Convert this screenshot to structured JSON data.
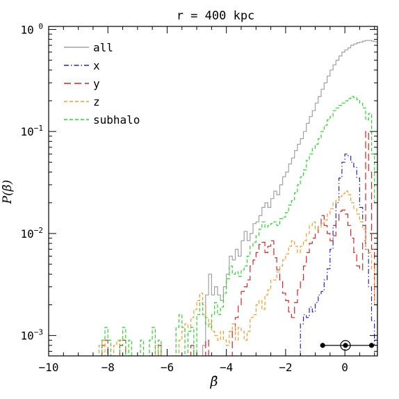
{
  "chart_data": {
    "type": "line",
    "title": "r = 400 kpc",
    "xlabel": "β̄",
    "ylabel": "P(β̄)",
    "xlim": [
      -10,
      1.1
    ],
    "ylim_log10": [
      -3.2,
      0.03
    ],
    "yscale": "log",
    "grid": false,
    "legend_position": "top-left",
    "x_ticks": [
      {
        "v": -10,
        "label": "−10"
      },
      {
        "v": -8,
        "label": "−8"
      },
      {
        "v": -6,
        "label": "−6"
      },
      {
        "v": -4,
        "label": "−4"
      },
      {
        "v": -2,
        "label": "−2"
      },
      {
        "v": 0,
        "label": "0"
      }
    ],
    "y_ticks": [
      {
        "base": "10",
        "exp": " 0",
        "log": 0
      },
      {
        "base": "10",
        "exp": "−1",
        "log": -1
      },
      {
        "base": "10",
        "exp": "−2",
        "log": -2
      },
      {
        "base": "10",
        "exp": "−3",
        "log": -3
      }
    ],
    "bin_start": -10.0,
    "bin_width": 0.1,
    "series": [
      {
        "name": "all",
        "color": "#a0a0a0",
        "dash": "",
        "width": 1.2,
        "points": [
          [
            -4.8,
            0.0008
          ],
          [
            -4.7,
            0.0025
          ],
          [
            -4.6,
            0.004
          ],
          [
            -4.5,
            0.0025
          ],
          [
            -4.4,
            0.003
          ],
          [
            -4.3,
            0.0025
          ],
          [
            -4.2,
            0.0022
          ],
          [
            -4.1,
            0.003
          ],
          [
            -4.0,
            0.004
          ],
          [
            -3.9,
            0.006
          ],
          [
            -3.8,
            0.0055
          ],
          [
            -3.7,
            0.007
          ],
          [
            -3.6,
            0.006
          ],
          [
            -3.5,
            0.0085
          ],
          [
            -3.4,
            0.0105
          ],
          [
            -3.3,
            0.0085
          ],
          [
            -3.2,
            0.01
          ],
          [
            -3.1,
            0.0125
          ],
          [
            -3.0,
            0.013
          ],
          [
            -2.9,
            0.015
          ],
          [
            -2.8,
            0.018
          ],
          [
            -2.7,
            0.02
          ],
          [
            -2.6,
            0.018
          ],
          [
            -2.5,
            0.022
          ],
          [
            -2.4,
            0.026
          ],
          [
            -2.3,
            0.024
          ],
          [
            -2.2,
            0.03
          ],
          [
            -2.1,
            0.036
          ],
          [
            -2.0,
            0.04
          ],
          [
            -1.9,
            0.048
          ],
          [
            -1.8,
            0.055
          ],
          [
            -1.7,
            0.065
          ],
          [
            -1.6,
            0.075
          ],
          [
            -1.5,
            0.085
          ],
          [
            -1.4,
            0.1
          ],
          [
            -1.3,
            0.12
          ],
          [
            -1.2,
            0.14
          ],
          [
            -1.1,
            0.16
          ],
          [
            -1.0,
            0.19
          ],
          [
            -0.9,
            0.22
          ],
          [
            -0.8,
            0.26
          ],
          [
            -0.7,
            0.3
          ],
          [
            -0.6,
            0.35
          ],
          [
            -0.5,
            0.4
          ],
          [
            -0.4,
            0.45
          ],
          [
            -0.3,
            0.5
          ],
          [
            -0.2,
            0.55
          ],
          [
            -0.1,
            0.6
          ],
          [
            0.0,
            0.63
          ],
          [
            0.1,
            0.66
          ],
          [
            0.2,
            0.7
          ],
          [
            0.3,
            0.72
          ],
          [
            0.4,
            0.74
          ],
          [
            0.5,
            0.75
          ],
          [
            0.6,
            0.77
          ],
          [
            0.7,
            0.78
          ],
          [
            0.8,
            0.78
          ],
          [
            0.9,
            0.77
          ],
          [
            1.0,
            0.76
          ]
        ]
      },
      {
        "name": "x",
        "color": "#2222cc",
        "dash": "7,3,1.5,3",
        "width": 1.2,
        "points": [
          [
            -1.5,
            0.0013
          ],
          [
            -1.4,
            0.0016
          ],
          [
            -1.3,
            0.0015
          ],
          [
            -1.2,
            0.0019
          ],
          [
            -1.1,
            0.0017
          ],
          [
            -1.0,
            0.0021
          ],
          [
            -0.9,
            0.0025
          ],
          [
            -0.8,
            0.0027
          ],
          [
            -0.7,
            0.0035
          ],
          [
            -0.6,
            0.0045
          ],
          [
            -0.5,
            0.007
          ],
          [
            -0.4,
            0.012
          ],
          [
            -0.3,
            0.02
          ],
          [
            -0.2,
            0.035
          ],
          [
            -0.1,
            0.05
          ],
          [
            0.0,
            0.06
          ],
          [
            0.1,
            0.058
          ],
          [
            0.2,
            0.05
          ],
          [
            0.3,
            0.045
          ],
          [
            0.4,
            0.035
          ],
          [
            0.5,
            0.018
          ],
          [
            0.6,
            0.012
          ],
          [
            0.7,
            0.007
          ],
          [
            0.8,
            0.003
          ],
          [
            0.9,
            0.0014
          ],
          [
            1.0,
            0.0008
          ]
        ]
      },
      {
        "name": "y",
        "color": "#dd2222",
        "dash": "10,5",
        "width": 1.2,
        "points": [
          [
            -8.2,
            0.0008
          ],
          [
            -8.1,
            0.0009
          ],
          [
            -7.6,
            0.0008
          ],
          [
            -7.5,
            0.0009
          ],
          [
            -6.3,
            0.0008
          ],
          [
            -5.2,
            0.0008
          ],
          [
            -4.7,
            0.0009
          ],
          [
            -3.8,
            0.0011
          ],
          [
            -3.7,
            0.0015
          ],
          [
            -3.6,
            0.002
          ],
          [
            -3.5,
            0.0027
          ],
          [
            -3.4,
            0.003
          ],
          [
            -3.3,
            0.0035
          ],
          [
            -3.2,
            0.0048
          ],
          [
            -3.1,
            0.0055
          ],
          [
            -3.0,
            0.0065
          ],
          [
            -2.9,
            0.0078
          ],
          [
            -2.8,
            0.0082
          ],
          [
            -2.7,
            0.0065
          ],
          [
            -2.6,
            0.0075
          ],
          [
            -2.5,
            0.0085
          ],
          [
            -2.4,
            0.0058
          ],
          [
            -2.3,
            0.0044
          ],
          [
            -2.2,
            0.0035
          ],
          [
            -2.1,
            0.0026
          ],
          [
            -2.0,
            0.0022
          ],
          [
            -1.9,
            0.0017
          ],
          [
            -1.8,
            0.0015
          ],
          [
            -1.7,
            0.0021
          ],
          [
            -1.6,
            0.0028
          ],
          [
            -1.5,
            0.0035
          ],
          [
            -1.4,
            0.0048
          ],
          [
            -1.3,
            0.0065
          ],
          [
            -1.2,
            0.008
          ],
          [
            -1.1,
            0.009
          ],
          [
            -1.0,
            0.01
          ],
          [
            -0.9,
            0.012
          ],
          [
            -0.8,
            0.015
          ],
          [
            -0.7,
            0.012
          ],
          [
            -0.6,
            0.01
          ],
          [
            -0.5,
            0.0085
          ],
          [
            -0.4,
            0.0095
          ],
          [
            -0.3,
            0.013
          ],
          [
            -0.2,
            0.0165
          ],
          [
            -0.1,
            0.017
          ],
          [
            0.0,
            0.0155
          ],
          [
            0.1,
            0.012
          ],
          [
            0.2,
            0.009
          ],
          [
            0.3,
            0.0065
          ],
          [
            0.4,
            0.0048
          ],
          [
            0.5,
            0.0044
          ],
          [
            0.6,
            0.0085
          ],
          [
            0.7,
            0.1
          ],
          [
            0.8,
            0.04
          ],
          [
            0.9,
            0.007
          ],
          [
            1.0,
            0.002
          ]
        ]
      },
      {
        "name": "z",
        "color": "#ff9922",
        "dash": "5,3",
        "width": 1.2,
        "points": [
          [
            -8.3,
            0.0008
          ],
          [
            -8.2,
            0.0009
          ],
          [
            -7.8,
            0.0008
          ],
          [
            -7.7,
            0.0009
          ],
          [
            -6.4,
            0.0008
          ],
          [
            -5.6,
            0.0009
          ],
          [
            -5.5,
            0.0011
          ],
          [
            -5.4,
            0.0013
          ],
          [
            -5.3,
            0.0012
          ],
          [
            -5.2,
            0.0015
          ],
          [
            -5.1,
            0.0018
          ],
          [
            -5.0,
            0.0022
          ],
          [
            -4.9,
            0.0026
          ],
          [
            -4.8,
            0.002
          ],
          [
            -4.7,
            0.0015
          ],
          [
            -4.6,
            0.0013
          ],
          [
            -4.5,
            0.0011
          ],
          [
            -4.4,
            0.001
          ],
          [
            -4.3,
            0.0009
          ],
          [
            -4.2,
            0.0011
          ],
          [
            -4.1,
            0.0009
          ],
          [
            -4.0,
            0.0008
          ],
          [
            -3.9,
            0.0011
          ],
          [
            -3.8,
            0.0013
          ],
          [
            -3.7,
            0.0009
          ],
          [
            -3.6,
            0.0012
          ],
          [
            -3.5,
            0.0011
          ],
          [
            -3.4,
            0.0009
          ],
          [
            -3.3,
            0.0011
          ],
          [
            -3.2,
            0.0015
          ],
          [
            -3.1,
            0.0016
          ],
          [
            -3.0,
            0.002
          ],
          [
            -2.9,
            0.0022
          ],
          [
            -2.8,
            0.0018
          ],
          [
            -2.7,
            0.0025
          ],
          [
            -2.6,
            0.0028
          ],
          [
            -2.5,
            0.0035
          ],
          [
            -2.4,
            0.0035
          ],
          [
            -2.3,
            0.0042
          ],
          [
            -2.2,
            0.0048
          ],
          [
            -2.1,
            0.0055
          ],
          [
            -2.0,
            0.0063
          ],
          [
            -1.9,
            0.0075
          ],
          [
            -1.8,
            0.0085
          ],
          [
            -1.7,
            0.0075
          ],
          [
            -1.6,
            0.0065
          ],
          [
            -1.5,
            0.0075
          ],
          [
            -1.4,
            0.0085
          ],
          [
            -1.3,
            0.01
          ],
          [
            -1.2,
            0.012
          ],
          [
            -1.1,
            0.013
          ],
          [
            -1.0,
            0.011
          ],
          [
            -0.9,
            0.0115
          ],
          [
            -0.8,
            0.0125
          ],
          [
            -0.7,
            0.0135
          ],
          [
            -0.6,
            0.0155
          ],
          [
            -0.5,
            0.0175
          ],
          [
            -0.4,
            0.02
          ],
          [
            -0.3,
            0.021
          ],
          [
            -0.2,
            0.023
          ],
          [
            -0.1,
            0.0245
          ],
          [
            0.0,
            0.026
          ],
          [
            0.1,
            0.024
          ],
          [
            0.2,
            0.02
          ],
          [
            0.3,
            0.0175
          ],
          [
            0.4,
            0.0155
          ],
          [
            0.5,
            0.013
          ],
          [
            0.6,
            0.011
          ],
          [
            0.7,
            0.007
          ],
          [
            0.8,
            0.0065
          ],
          [
            0.9,
            0.0045
          ],
          [
            1.0,
            0.002
          ]
        ]
      },
      {
        "name": "subhalo",
        "color": "#22dd22",
        "dash": "5,3",
        "width": 1.2,
        "points": [
          [
            -8.2,
            0.0009
          ],
          [
            -8.1,
            0.0012
          ],
          [
            -8.0,
            0.0009
          ],
          [
            -7.6,
            0.0009
          ],
          [
            -7.5,
            0.0012
          ],
          [
            -7.3,
            0.0009
          ],
          [
            -6.9,
            0.0009
          ],
          [
            -6.6,
            0.0009
          ],
          [
            -6.5,
            0.0012
          ],
          [
            -6.3,
            0.0009
          ],
          [
            -5.7,
            0.0012
          ],
          [
            -5.6,
            0.0016
          ],
          [
            -5.5,
            0.0012
          ],
          [
            -5.3,
            0.0011
          ],
          [
            -5.2,
            0.0012
          ],
          [
            -5.0,
            0.0016
          ],
          [
            -4.9,
            0.0021
          ],
          [
            -4.8,
            0.0016
          ],
          [
            -4.7,
            0.0013
          ],
          [
            -4.6,
            0.0012
          ],
          [
            -4.5,
            0.0016
          ],
          [
            -4.4,
            0.0021
          ],
          [
            -4.3,
            0.0016
          ],
          [
            -4.2,
            0.0019
          ],
          [
            -4.1,
            0.0026
          ],
          [
            -4.0,
            0.0036
          ],
          [
            -3.9,
            0.0048
          ],
          [
            -3.8,
            0.004
          ],
          [
            -3.7,
            0.0042
          ],
          [
            -3.6,
            0.0038
          ],
          [
            -3.5,
            0.0044
          ],
          [
            -3.4,
            0.0048
          ],
          [
            -3.3,
            0.006
          ],
          [
            -3.2,
            0.0075
          ],
          [
            -3.1,
            0.0082
          ],
          [
            -3.0,
            0.0095
          ],
          [
            -2.9,
            0.011
          ],
          [
            -2.8,
            0.013
          ],
          [
            -2.7,
            0.0115
          ],
          [
            -2.6,
            0.012
          ],
          [
            -2.5,
            0.0125
          ],
          [
            -2.4,
            0.013
          ],
          [
            -2.3,
            0.012
          ],
          [
            -2.2,
            0.014
          ],
          [
            -2.1,
            0.0145
          ],
          [
            -2.0,
            0.016
          ],
          [
            -1.9,
            0.019
          ],
          [
            -1.8,
            0.021
          ],
          [
            -1.7,
            0.025
          ],
          [
            -1.6,
            0.03
          ],
          [
            -1.5,
            0.036
          ],
          [
            -1.4,
            0.042
          ],
          [
            -1.3,
            0.052
          ],
          [
            -1.2,
            0.06
          ],
          [
            -1.1,
            0.068
          ],
          [
            -1.0,
            0.075
          ],
          [
            -0.9,
            0.085
          ],
          [
            -0.8,
            0.1
          ],
          [
            -0.7,
            0.115
          ],
          [
            -0.6,
            0.13
          ],
          [
            -0.5,
            0.14
          ],
          [
            -0.4,
            0.16
          ],
          [
            -0.3,
            0.17
          ],
          [
            -0.2,
            0.18
          ],
          [
            -0.1,
            0.19
          ],
          [
            0.0,
            0.2
          ],
          [
            0.1,
            0.21
          ],
          [
            0.2,
            0.22
          ],
          [
            0.3,
            0.215
          ],
          [
            0.4,
            0.205
          ],
          [
            0.5,
            0.19
          ],
          [
            0.6,
            0.17
          ],
          [
            0.7,
            0.13
          ],
          [
            0.8,
            0.15
          ],
          [
            0.9,
            0.06
          ],
          [
            1.0,
            0.02
          ]
        ]
      }
    ],
    "markers": {
      "y": 0.0008,
      "line": [
        -0.75,
        0.9
      ],
      "dots": [
        -0.75,
        0.02,
        0.9
      ],
      "circle": 0.02
    }
  }
}
